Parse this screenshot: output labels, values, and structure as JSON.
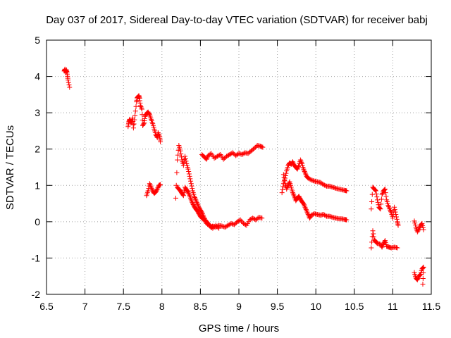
{
  "chart_data": {
    "type": "scatter",
    "title": "Day 037 of 2017, Sidereal Day-to-day VTEC variation (SDTVAR) for receiver babj",
    "xlabel": "GPS time / hours",
    "ylabel": "SDTVAR / TECUs",
    "xlim": [
      6.5,
      11.5
    ],
    "ylim": [
      -2,
      5
    ],
    "xticks": [
      6.5,
      7,
      7.5,
      8,
      8.5,
      9,
      9.5,
      10,
      10.5,
      11,
      11.5
    ],
    "xtick_labels": [
      "6.5",
      "7",
      "7.5",
      "8",
      "8.5",
      "9",
      "9.5",
      "10",
      "10.5",
      "11",
      "11.5"
    ],
    "yticks": [
      -2,
      -1,
      0,
      1,
      2,
      3,
      4,
      5
    ],
    "ytick_labels": [
      "-2",
      "-1",
      "0",
      "1",
      "2",
      "3",
      "4",
      "5"
    ],
    "grid": true,
    "marker": "+",
    "marker_color": "#ff0000",
    "segments": [
      {
        "name": "s01",
        "points": [
          [
            6.73,
            4.15
          ],
          [
            6.74,
            4.2
          ],
          [
            6.75,
            4.12
          ],
          [
            6.76,
            4.18
          ],
          [
            6.77,
            4.05
          ],
          [
            6.78,
            3.9
          ],
          [
            6.8,
            3.7
          ]
        ]
      },
      {
        "name": "s02",
        "points": [
          [
            7.56,
            2.62
          ],
          [
            7.57,
            2.75
          ],
          [
            7.58,
            2.82
          ],
          [
            7.6,
            2.72
          ],
          [
            7.62,
            2.85
          ],
          [
            7.63,
            2.58
          ],
          [
            7.65,
            2.92
          ],
          [
            7.67,
            3.3
          ],
          [
            7.68,
            3.42
          ],
          [
            7.7,
            3.47
          ],
          [
            7.71,
            3.4
          ],
          [
            7.72,
            3.2
          ],
          [
            7.74,
            3.1
          ],
          [
            7.75,
            2.65
          ],
          [
            7.77,
            2.72
          ],
          [
            7.78,
            2.9
          ],
          [
            7.8,
            2.98
          ],
          [
            7.82,
            3.02
          ],
          [
            7.84,
            2.95
          ],
          [
            7.86,
            2.82
          ],
          [
            7.88,
            2.7
          ],
          [
            7.9,
            2.55
          ],
          [
            7.92,
            2.4
          ],
          [
            7.94,
            2.32
          ],
          [
            7.95,
            2.45
          ],
          [
            7.97,
            2.35
          ],
          [
            7.98,
            2.2
          ]
        ]
      },
      {
        "name": "s03",
        "points": [
          [
            7.8,
            0.72
          ],
          [
            7.82,
            0.85
          ],
          [
            7.84,
            1.05
          ],
          [
            7.86,
            0.95
          ],
          [
            7.88,
            0.85
          ],
          [
            7.9,
            0.78
          ],
          [
            7.92,
            0.82
          ],
          [
            7.94,
            0.9
          ],
          [
            7.96,
            1.0
          ],
          [
            7.98,
            1.02
          ]
        ]
      },
      {
        "name": "s04",
        "points": [
          [
            8.18,
            0.65
          ],
          [
            8.2,
            1.7
          ],
          [
            8.22,
            2.1
          ],
          [
            8.24,
            1.95
          ],
          [
            8.26,
            1.7
          ],
          [
            8.28,
            1.55
          ],
          [
            8.3,
            1.8
          ],
          [
            8.32,
            1.6
          ],
          [
            8.34,
            1.45
          ],
          [
            8.36,
            1.25
          ],
          [
            8.38,
            1.05
          ],
          [
            8.4,
            0.85
          ],
          [
            8.42,
            0.7
          ],
          [
            8.44,
            0.6
          ],
          [
            8.46,
            0.5
          ],
          [
            8.48,
            0.4
          ],
          [
            8.5,
            0.32
          ],
          [
            8.52,
            0.25
          ],
          [
            8.54,
            0.15
          ],
          [
            8.56,
            0.05
          ],
          [
            8.58,
            0.0
          ],
          [
            8.6,
            -0.05
          ],
          [
            8.62,
            -0.1
          ],
          [
            8.64,
            -0.15
          ],
          [
            8.66,
            -0.12
          ],
          [
            8.7,
            -0.15
          ],
          [
            8.74,
            -0.1
          ],
          [
            8.78,
            -0.12
          ],
          [
            8.82,
            -0.15
          ],
          [
            8.86,
            -0.1
          ],
          [
            8.9,
            -0.05
          ],
          [
            8.94,
            -0.08
          ],
          [
            8.98,
            0.0
          ],
          [
            9.02,
            0.05
          ],
          [
            9.06,
            -0.05
          ],
          [
            9.1,
            -0.1
          ],
          [
            9.14,
            0.05
          ],
          [
            9.18,
            0.1
          ],
          [
            9.22,
            0.05
          ],
          [
            9.26,
            0.12
          ],
          [
            9.3,
            0.1
          ]
        ]
      },
      {
        "name": "s05",
        "points": [
          [
            8.2,
            0.95
          ],
          [
            8.22,
            0.9
          ],
          [
            8.24,
            0.85
          ],
          [
            8.26,
            0.78
          ],
          [
            8.28,
            0.72
          ],
          [
            8.3,
            0.95
          ],
          [
            8.32,
            0.88
          ],
          [
            8.34,
            0.82
          ],
          [
            8.36,
            0.72
          ],
          [
            8.38,
            0.6
          ],
          [
            8.4,
            0.5
          ],
          [
            8.42,
            0.42
          ],
          [
            8.44,
            0.35
          ],
          [
            8.46,
            0.3
          ],
          [
            8.48,
            0.22
          ],
          [
            8.5,
            0.15
          ],
          [
            8.52,
            0.1
          ],
          [
            8.55,
            0.05
          ],
          [
            8.58,
            -0.05
          ],
          [
            8.62,
            -0.12
          ],
          [
            8.66,
            -0.18
          ],
          [
            8.7,
            -0.1
          ],
          [
            8.74,
            -0.18
          ]
        ]
      },
      {
        "name": "s06",
        "points": [
          [
            8.52,
            1.85
          ],
          [
            8.55,
            1.78
          ],
          [
            8.58,
            1.72
          ],
          [
            8.6,
            1.82
          ],
          [
            8.64,
            1.88
          ],
          [
            8.68,
            1.75
          ],
          [
            8.72,
            1.8
          ],
          [
            8.76,
            1.85
          ],
          [
            8.8,
            1.72
          ],
          [
            8.84,
            1.8
          ],
          [
            8.88,
            1.85
          ],
          [
            8.92,
            1.9
          ],
          [
            8.96,
            1.82
          ],
          [
            9.0,
            1.88
          ],
          [
            9.04,
            1.85
          ],
          [
            9.08,
            1.9
          ],
          [
            9.12,
            1.88
          ],
          [
            9.16,
            1.95
          ],
          [
            9.2,
            2.02
          ],
          [
            9.24,
            2.1
          ],
          [
            9.28,
            2.08
          ],
          [
            9.31,
            2.05
          ]
        ]
      },
      {
        "name": "s07",
        "points": [
          [
            9.56,
            0.8
          ],
          [
            9.58,
            1.05
          ],
          [
            9.6,
            1.2
          ],
          [
            9.62,
            1.4
          ],
          [
            9.64,
            1.55
          ],
          [
            9.66,
            1.62
          ],
          [
            9.68,
            1.58
          ],
          [
            9.7,
            1.65
          ],
          [
            9.72,
            1.55
          ],
          [
            9.74,
            1.5
          ],
          [
            9.76,
            1.45
          ],
          [
            9.78,
            1.55
          ],
          [
            9.8,
            1.7
          ],
          [
            9.82,
            1.6
          ],
          [
            9.84,
            1.45
          ],
          [
            9.86,
            1.35
          ],
          [
            9.88,
            1.25
          ],
          [
            9.9,
            1.2
          ],
          [
            9.94,
            1.15
          ],
          [
            9.98,
            1.12
          ],
          [
            10.02,
            1.1
          ],
          [
            10.06,
            1.08
          ],
          [
            10.1,
            1.02
          ],
          [
            10.14,
            0.98
          ],
          [
            10.18,
            0.98
          ],
          [
            10.22,
            0.95
          ],
          [
            10.26,
            0.92
          ],
          [
            10.3,
            0.9
          ],
          [
            10.34,
            0.88
          ],
          [
            10.38,
            0.86
          ],
          [
            10.4,
            0.85
          ]
        ]
      },
      {
        "name": "s08",
        "points": [
          [
            9.58,
            1.3
          ],
          [
            9.6,
            1.05
          ],
          [
            9.62,
            0.9
          ],
          [
            9.64,
            1.0
          ],
          [
            9.66,
            1.1
          ],
          [
            9.68,
            0.95
          ],
          [
            9.7,
            0.8
          ],
          [
            9.72,
            0.7
          ],
          [
            9.74,
            0.58
          ],
          [
            9.76,
            0.65
          ],
          [
            9.78,
            0.7
          ],
          [
            9.8,
            0.62
          ],
          [
            9.82,
            0.55
          ],
          [
            9.84,
            0.5
          ],
          [
            9.86,
            0.4
          ],
          [
            9.88,
            0.3
          ],
          [
            9.9,
            0.2
          ],
          [
            9.92,
            0.1
          ],
          [
            9.94,
            0.18
          ],
          [
            9.98,
            0.22
          ],
          [
            10.02,
            0.2
          ],
          [
            10.06,
            0.18
          ],
          [
            10.1,
            0.2
          ],
          [
            10.14,
            0.15
          ],
          [
            10.18,
            0.15
          ],
          [
            10.22,
            0.12
          ],
          [
            10.26,
            0.1
          ],
          [
            10.3,
            0.08
          ],
          [
            10.34,
            0.08
          ],
          [
            10.38,
            0.06
          ],
          [
            10.4,
            0.05
          ]
        ]
      },
      {
        "name": "s09",
        "points": [
          [
            10.72,
            0.35
          ],
          [
            10.74,
            0.95
          ],
          [
            10.76,
            0.9
          ],
          [
            10.78,
            0.85
          ],
          [
            10.8,
            0.6
          ],
          [
            10.82,
            0.4
          ],
          [
            10.84,
            0.35
          ],
          [
            10.86,
            0.75
          ],
          [
            10.88,
            0.85
          ],
          [
            10.9,
            0.9
          ],
          [
            10.92,
            0.6
          ],
          [
            10.94,
            0.45
          ],
          [
            10.96,
            0.35
          ],
          [
            10.98,
            0.25
          ],
          [
            11.0,
            0.1
          ],
          [
            11.02,
            0.4
          ],
          [
            11.04,
            0.2
          ],
          [
            11.06,
            0.0
          ],
          [
            11.07,
            -0.1
          ]
        ]
      },
      {
        "name": "s10",
        "points": [
          [
            10.72,
            -0.72
          ],
          [
            10.74,
            -0.25
          ],
          [
            10.76,
            -0.5
          ],
          [
            10.78,
            -0.55
          ],
          [
            10.8,
            -0.6
          ],
          [
            10.84,
            -0.62
          ],
          [
            10.86,
            -0.7
          ],
          [
            10.88,
            -0.6
          ],
          [
            10.9,
            -0.52
          ],
          [
            10.92,
            -0.68
          ],
          [
            10.95,
            -0.7
          ],
          [
            10.98,
            -0.72
          ],
          [
            11.02,
            -0.7
          ],
          [
            11.06,
            -0.72
          ]
        ]
      },
      {
        "name": "s11",
        "points": [
          [
            11.28,
            0.02
          ],
          [
            11.3,
            -0.15
          ],
          [
            11.32,
            -0.28
          ],
          [
            11.34,
            -0.2
          ],
          [
            11.36,
            -0.1
          ],
          [
            11.38,
            -0.05
          ],
          [
            11.4,
            -0.22
          ]
        ]
      },
      {
        "name": "s12",
        "points": [
          [
            11.28,
            -1.4
          ],
          [
            11.3,
            -1.55
          ],
          [
            11.32,
            -1.6
          ],
          [
            11.34,
            -1.5
          ],
          [
            11.36,
            -1.45
          ],
          [
            11.38,
            -1.3
          ],
          [
            11.4,
            -1.25
          ],
          [
            11.39,
            -1.72
          ]
        ]
      }
    ]
  }
}
